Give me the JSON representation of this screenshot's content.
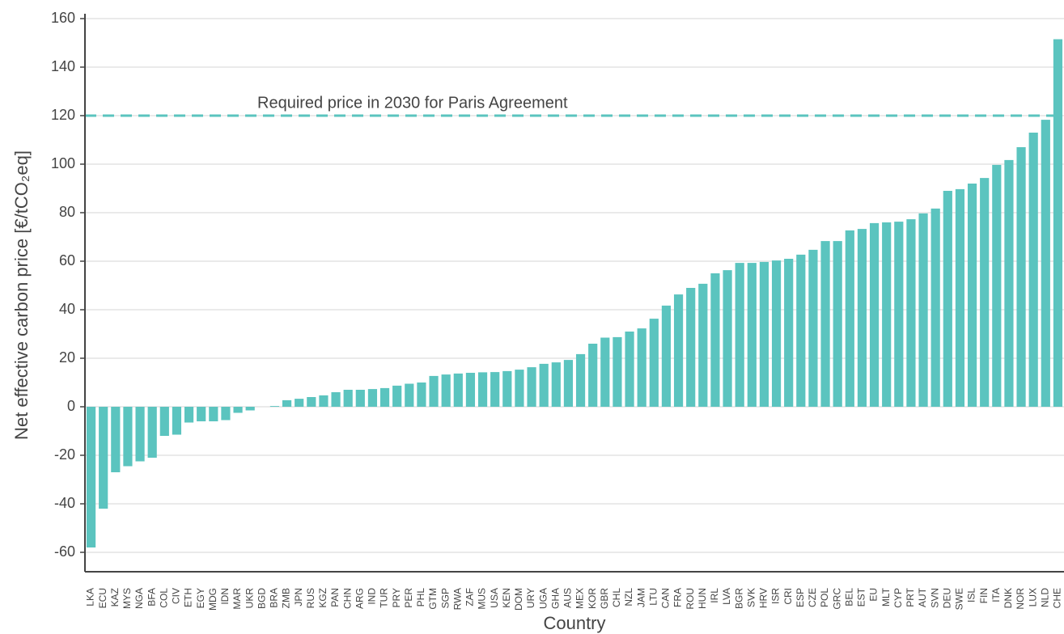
{
  "chart_data": {
    "type": "bar",
    "y_label": "Net effective carbon price [€/tCO₂eq]",
    "x_label": "Country",
    "categories": [
      "LKA",
      "ECU",
      "KAZ",
      "MYS",
      "NGA",
      "BFA",
      "COL",
      "CIV",
      "ETH",
      "EGY",
      "MDG",
      "IDN",
      "MAR",
      "UKR",
      "BGD",
      "BRA",
      "ZMB",
      "JPN",
      "RUS",
      "KGZ",
      "PAN",
      "CHN",
      "ARG",
      "IND",
      "TUR",
      "PRY",
      "PER",
      "PHL",
      "GTM",
      "SGP",
      "RWA",
      "ZAF",
      "MUS",
      "USA",
      "KEN",
      "DOM",
      "URY",
      "UGA",
      "GHA",
      "AUS",
      "MEX",
      "KOR",
      "GBR",
      "CHL",
      "NZL",
      "JAM",
      "LTU",
      "CAN",
      "FRA",
      "ROU",
      "HUN",
      "IRL",
      "LVA",
      "BGR",
      "SVK",
      "HRV",
      "ISR",
      "CRI",
      "ESP",
      "CZE",
      "POL",
      "GRC",
      "BEL",
      "EST",
      "EU",
      "MLT",
      "CYP",
      "PRT",
      "AUT",
      "SVN",
      "DEU",
      "SWE",
      "ISL",
      "FIN",
      "ITA",
      "DNK",
      "NOR",
      "LUX",
      "NLD",
      "CHE"
    ],
    "values": [
      -58,
      -42,
      -27,
      -24.5,
      -22.5,
      -21,
      -12,
      -11.5,
      -6.5,
      -6,
      -6,
      -5.5,
      -2.5,
      -1.5,
      0,
      0.3,
      2.7,
      3.3,
      4,
      4.7,
      6,
      7,
      7,
      7.3,
      7.7,
      8.7,
      9.5,
      10,
      12.7,
      13.3,
      13.7,
      14,
      14.2,
      14.3,
      14.7,
      15.3,
      16.3,
      17.7,
      18.3,
      19.3,
      21.7,
      26,
      28.5,
      28.7,
      31,
      32.3,
      36.3,
      41.7,
      46.3,
      49,
      50.7,
      55,
      56.3,
      59.3,
      59.3,
      59.7,
      60.3,
      61,
      62.7,
      64.7,
      68.3,
      68.3,
      72.7,
      73.3,
      75.7,
      76,
      76.3,
      77.3,
      79.7,
      81.7,
      89,
      89.7,
      92,
      94.3,
      99.7,
      101.7,
      107,
      113,
      118.3,
      151.5
    ],
    "color": "#5bc4bf",
    "ylim": [
      -68,
      162
    ],
    "yticks": [
      -60,
      -40,
      -20,
      0,
      20,
      40,
      60,
      80,
      100,
      120,
      140,
      160
    ],
    "grid": true,
    "reference_line": {
      "value": 120,
      "label": "Required price in 2030 for Paris Agreement",
      "color": "#5bc4bf"
    }
  }
}
